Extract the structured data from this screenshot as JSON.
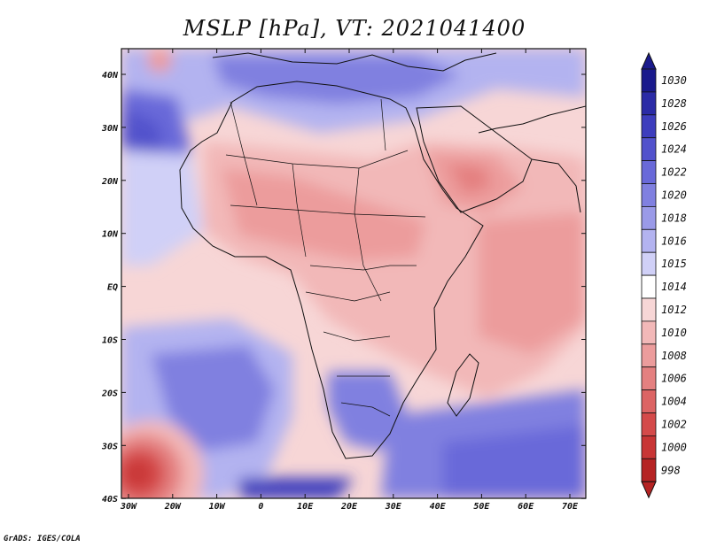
{
  "title": "MSLP [hPa], VT: 2021041400",
  "credit": "GrADS: IGES/COLA",
  "map": {
    "lon_labels": [
      "30W",
      "20W",
      "10W",
      "0",
      "10E",
      "20E",
      "30E",
      "40E",
      "50E",
      "60E",
      "70E"
    ],
    "lat_labels": [
      "40N",
      "30N",
      "20N",
      "10N",
      "EQ",
      "10S",
      "20S",
      "30S",
      "40S"
    ]
  },
  "colorbar": {
    "levels": [
      "1030",
      "1028",
      "1026",
      "1024",
      "1022",
      "1020",
      "1018",
      "1016",
      "1015",
      "1014",
      "1012",
      "1010",
      "1008",
      "1006",
      "1004",
      "1002",
      "1000",
      "998"
    ],
    "colors": [
      "#1a1a8c",
      "#2b2ba6",
      "#3d3dbd",
      "#5252cc",
      "#6969d9",
      "#8080e0",
      "#9a9ae8",
      "#b3b3f0",
      "#d0d0f7",
      "#ffffff",
      "#f7d6d6",
      "#f2b8b8",
      "#ec9c9c",
      "#e48080",
      "#dc6464",
      "#d44a4a",
      "#c83535",
      "#b52323"
    ]
  },
  "colors": {
    "high_outer": "#b3b3f0",
    "high_core": "#6969d9",
    "low_land": "#f2b8b8",
    "low_core": "#e48080",
    "neutral": "#ffffff"
  }
}
